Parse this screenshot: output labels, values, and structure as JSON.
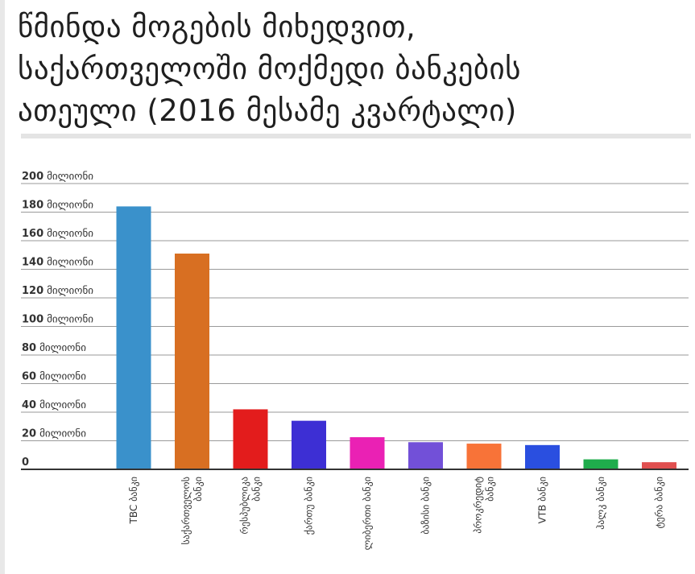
{
  "title": {
    "lines": [
      "წმინდა მოგების მიხედვით,",
      "საქართველოში მოქმედი ბანკების",
      "ათეული (2016 მესამე კვარტალი)"
    ]
  },
  "chart_data": {
    "type": "bar",
    "title": "წმინდა მოგების მიხედვით, საქართველოში მოქმედი ბანკების ათეული (2016 მესამე კვარტალი)",
    "categories": [
      "TBC ბანკი",
      "საქართველოს ბანკი",
      "რესპუბლიკა ბანკი",
      "ქართუ ბანკი",
      "ლიბერთი ბანკი",
      "ბაზისი ბანკი",
      "პროკრედიტ ბანკი",
      "VTB ბანკი",
      "ჰალკ ბანკი",
      "ტერა ბანკი"
    ],
    "category_lines": [
      [
        "TBC ბანკი"
      ],
      [
        "საქართველოს",
        "ბანკი"
      ],
      [
        "რესპუბლიკა",
        "ბანკი"
      ],
      [
        "ქართუ ბანკი"
      ],
      [
        "ლიბერთი ბანკი"
      ],
      [
        "ბაზისი ბანკი"
      ],
      [
        "პროკრედიტ",
        "ბანკი"
      ],
      [
        "VTB ბანკი"
      ],
      [
        "ჰალკ ბანკი"
      ],
      [
        "ტერა ბანკი"
      ]
    ],
    "values": [
      184,
      151,
      42,
      34,
      22.5,
      19,
      18,
      17,
      7,
      5
    ],
    "colors": [
      "#3a91cb",
      "#d86f22",
      "#e31c1c",
      "#3d2fd4",
      "#ea21b4",
      "#7250d8",
      "#f87338",
      "#2a4fe0",
      "#1fac4c",
      "#e05050"
    ],
    "ylim": [
      0,
      200
    ],
    "yticks": [
      {
        "value": 0,
        "num": "0",
        "unit": ""
      },
      {
        "value": 20,
        "num": "20",
        "unit": "მილიონი"
      },
      {
        "value": 40,
        "num": "40",
        "unit": "მილიონი"
      },
      {
        "value": 60,
        "num": "60",
        "unit": "მილიონი"
      },
      {
        "value": 80,
        "num": "80",
        "unit": "მილიონი"
      },
      {
        "value": 100,
        "num": "100",
        "unit": "მილიონი"
      },
      {
        "value": 120,
        "num": "120",
        "unit": "მილიონი"
      },
      {
        "value": 140,
        "num": "140",
        "unit": "მილიონი"
      },
      {
        "value": 160,
        "num": "160",
        "unit": "მილიონი"
      },
      {
        "value": 180,
        "num": "180",
        "unit": "მილიონი"
      },
      {
        "value": 200,
        "num": "200",
        "unit": "მილიონი"
      }
    ],
    "grid": true,
    "legend": "none"
  }
}
